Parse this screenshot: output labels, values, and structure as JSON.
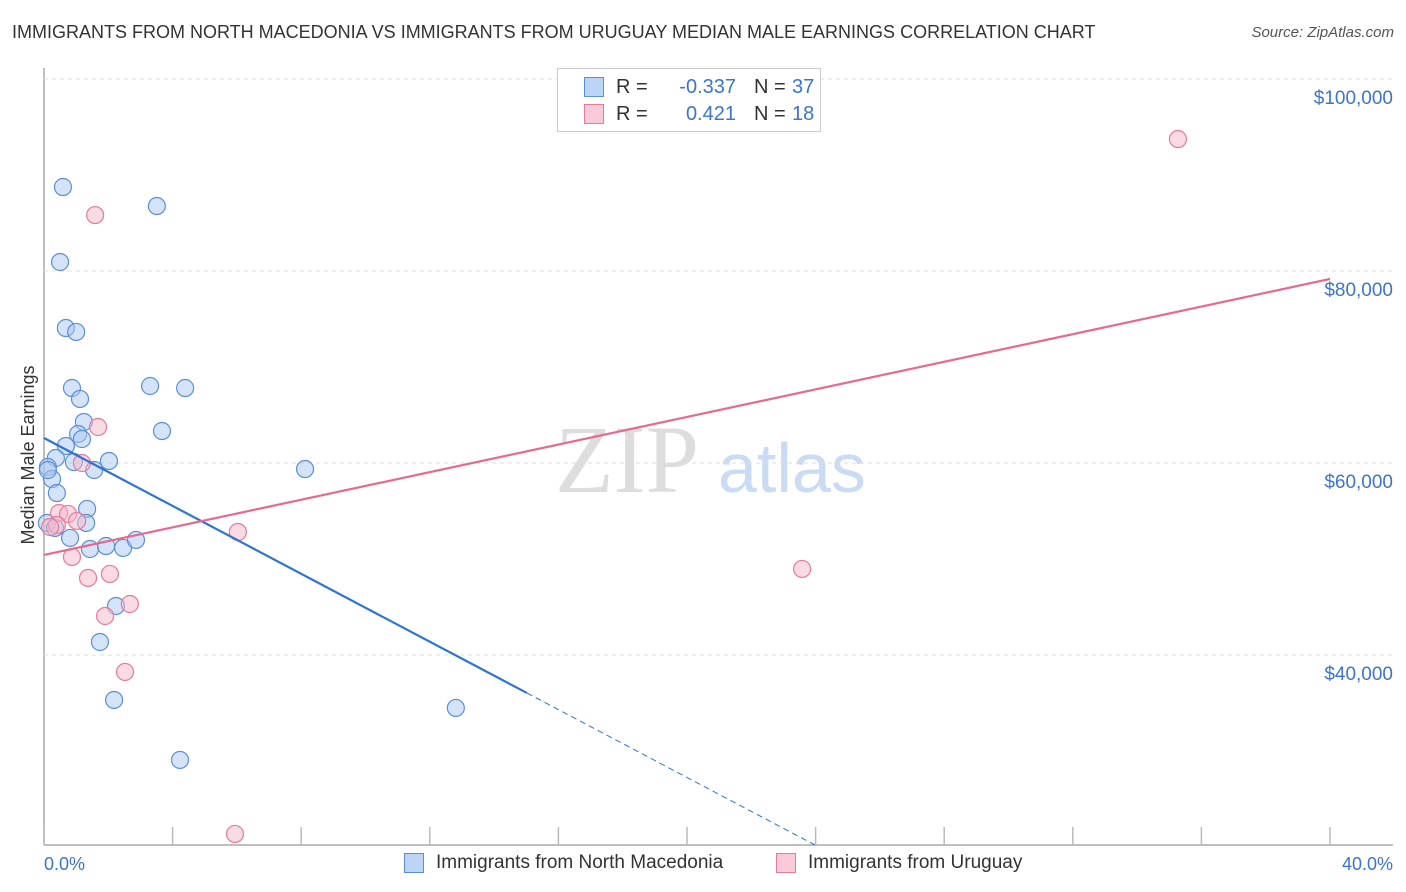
{
  "title": "IMMIGRANTS FROM NORTH MACEDONIA VS IMMIGRANTS FROM URUGUAY MEDIAN MALE EARNINGS CORRELATION CHART",
  "source": "Source: ZipAtlas.com",
  "watermark": {
    "zip": "ZIP",
    "atlas": "atlas"
  },
  "legend": [
    {
      "r_label": "R =",
      "r": "-0.337",
      "n_label": "N =",
      "n": "37"
    },
    {
      "r_label": "R =",
      "r": "0.421",
      "n_label": "N =",
      "n": "18"
    }
  ],
  "colors": {
    "blue": "#5b8fd9",
    "blue_fill": "#a9c8f0",
    "pink": "#e77a9c",
    "pink_fill": "#f5b8ca",
    "blue_line": "#2f74d0",
    "pink_line": "#e8688e",
    "text_blue": "#3b74d1"
  },
  "chart_data": {
    "type": "scatter",
    "title": "IMMIGRANTS FROM NORTH MACEDONIA VS IMMIGRANTS FROM URUGUAY MEDIAN MALE EARNINGS CORRELATION CHART",
    "xlabel": "",
    "ylabel": "Median Male Earnings",
    "xlim": [
      0,
      40
    ],
    "ylim": [
      20200,
      101150
    ],
    "x_tick_labels": [
      "0.0%",
      "40.0%"
    ],
    "y_ticks": [
      40000,
      60000,
      80000,
      100000
    ],
    "y_tick_labels": [
      "$40,000",
      "$60,000",
      "$80,000",
      "$100,000"
    ],
    "grid": true,
    "legend_placement": "top-center",
    "series": [
      {
        "name": "Immigrants from North Macedonia",
        "points": [
          [
            0.59,
            88750
          ],
          [
            3.51,
            86770
          ],
          [
            0.5,
            80940
          ],
          [
            0.68,
            74060
          ],
          [
            1.0,
            73650
          ],
          [
            0.87,
            67810
          ],
          [
            3.3,
            68020
          ],
          [
            4.39,
            67810
          ],
          [
            1.12,
            66670
          ],
          [
            1.24,
            64270
          ],
          [
            3.67,
            63330
          ],
          [
            1.06,
            63020
          ],
          [
            1.18,
            62500
          ],
          [
            0.68,
            61770
          ],
          [
            0.37,
            60520
          ],
          [
            0.93,
            60100
          ],
          [
            2.02,
            60210
          ],
          [
            1.56,
            59270
          ],
          [
            0.12,
            59580
          ],
          [
            8.12,
            59370
          ],
          [
            0.25,
            58330
          ],
          [
            0.4,
            56870
          ],
          [
            1.34,
            55210
          ],
          [
            1.31,
            53750
          ],
          [
            0.09,
            53750
          ],
          [
            0.81,
            52190
          ],
          [
            1.43,
            51040
          ],
          [
            1.93,
            51350
          ],
          [
            2.46,
            51150
          ],
          [
            2.86,
            51980
          ],
          [
            2.24,
            45100
          ],
          [
            1.74,
            41350
          ],
          [
            2.18,
            35310
          ],
          [
            12.81,
            34480
          ],
          [
            4.23,
            29060
          ],
          [
            0.12,
            59270
          ],
          [
            0.34,
            53230
          ]
        ],
        "trend": {
          "x0": 0,
          "y0": 62600,
          "x1": 15.02,
          "y1": 36040,
          "dash_to_x": 23.98,
          "dash_to_y": 20200
        }
      },
      {
        "name": "Immigrants from Uruguay",
        "points": [
          [
            35.27,
            93750
          ],
          [
            1.59,
            85830
          ],
          [
            1.68,
            63750
          ],
          [
            1.18,
            60000
          ],
          [
            0.47,
            54790
          ],
          [
            0.75,
            54690
          ],
          [
            1.03,
            53960
          ],
          [
            0.4,
            53540
          ],
          [
            0.19,
            53330
          ],
          [
            6.03,
            52810
          ],
          [
            0.87,
            50210
          ],
          [
            1.37,
            48020
          ],
          [
            2.05,
            48440
          ],
          [
            2.67,
            45310
          ],
          [
            1.9,
            44060
          ],
          [
            2.52,
            38230
          ],
          [
            5.94,
            21350
          ],
          [
            23.58,
            48960
          ]
        ],
        "trend": {
          "x0": 0,
          "y0": 50420,
          "x1": 40,
          "y1": 79170
        }
      }
    ]
  }
}
